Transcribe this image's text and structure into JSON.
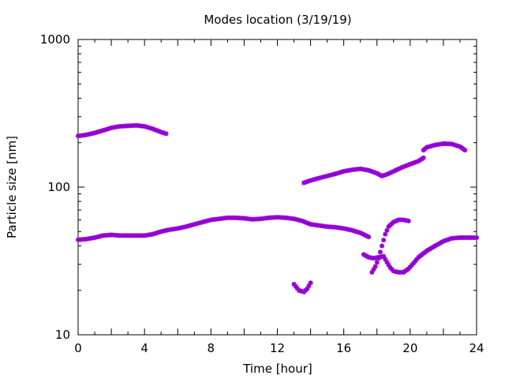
{
  "chart_data": {
    "type": "scatter",
    "title": "Modes location (3/19/19)",
    "xlabel": "Time [hour]",
    "ylabel": "Particle size [nm]",
    "xlim": [
      0,
      24
    ],
    "ylim": [
      10,
      1000
    ],
    "yscale": "log",
    "grid": false,
    "legend": "none",
    "marker_color": "#9400D3",
    "x_ticks": [
      0,
      4,
      8,
      12,
      16,
      20,
      24
    ],
    "x_tick_labels": [
      "0",
      "4",
      "8",
      "12",
      "16",
      "20",
      "24"
    ],
    "y_ticks": [
      10,
      100,
      1000
    ],
    "y_tick_labels": [
      "10",
      "100",
      "1000"
    ],
    "series": [
      {
        "values": [
          [
            0.0,
            222
          ],
          [
            0.5,
            226
          ],
          [
            1.0,
            233
          ],
          [
            1.5,
            242
          ],
          [
            2.0,
            252
          ],
          [
            2.5,
            258
          ],
          [
            3.0,
            260
          ],
          [
            3.5,
            262
          ],
          [
            4.0,
            258
          ],
          [
            4.5,
            248
          ],
          [
            5.0,
            236
          ],
          [
            5.3,
            230
          ]
        ]
      },
      {
        "values": [
          [
            0.0,
            44
          ],
          [
            0.5,
            44.5
          ],
          [
            1.0,
            45.5
          ],
          [
            1.5,
            47
          ],
          [
            2.0,
            47.5
          ],
          [
            2.5,
            47
          ],
          [
            3.0,
            47
          ],
          [
            3.5,
            47
          ],
          [
            4.0,
            47
          ],
          [
            4.5,
            48
          ],
          [
            5.0,
            50
          ],
          [
            5.5,
            51.5
          ],
          [
            6.0,
            52.5
          ],
          [
            6.5,
            54
          ],
          [
            7.0,
            56
          ],
          [
            7.5,
            58
          ],
          [
            8.0,
            60
          ],
          [
            8.5,
            61
          ],
          [
            9.0,
            62
          ],
          [
            9.5,
            62
          ],
          [
            10.0,
            61.5
          ],
          [
            10.5,
            60.5
          ],
          [
            11.0,
            61
          ],
          [
            11.5,
            62
          ],
          [
            12.0,
            62.5
          ],
          [
            12.5,
            62
          ],
          [
            13.0,
            61
          ],
          [
            13.5,
            59
          ],
          [
            14.0,
            56
          ],
          [
            14.5,
            55
          ],
          [
            15.0,
            54
          ],
          [
            15.5,
            53.5
          ],
          [
            16.0,
            52.5
          ],
          [
            16.5,
            51
          ],
          [
            17.0,
            49
          ],
          [
            17.5,
            46
          ]
        ]
      },
      {
        "values": [
          [
            13.0,
            22
          ],
          [
            13.3,
            20
          ],
          [
            13.6,
            19.5
          ],
          [
            13.8,
            20.5
          ],
          [
            14.0,
            22.5
          ]
        ]
      },
      {
        "values": [
          [
            13.6,
            107
          ],
          [
            14.0,
            111
          ],
          [
            14.5,
            115
          ],
          [
            15.0,
            119
          ],
          [
            15.5,
            123
          ],
          [
            16.0,
            128
          ],
          [
            16.5,
            131
          ],
          [
            17.0,
            133
          ],
          [
            17.5,
            130
          ],
          [
            18.0,
            124
          ],
          [
            18.3,
            119
          ],
          [
            18.6,
            122
          ],
          [
            19.0,
            128
          ],
          [
            19.5,
            136
          ],
          [
            20.0,
            143
          ],
          [
            20.5,
            150
          ],
          [
            20.8,
            158
          ]
        ]
      },
      {
        "values": [
          [
            20.8,
            178
          ],
          [
            21.0,
            186
          ],
          [
            21.5,
            193
          ],
          [
            22.0,
            197
          ],
          [
            22.5,
            196
          ],
          [
            23.0,
            188
          ],
          [
            23.3,
            178
          ]
        ]
      },
      {
        "values": [
          [
            17.2,
            35
          ],
          [
            17.5,
            33.5
          ],
          [
            17.8,
            33
          ],
          [
            18.1,
            33.5
          ],
          [
            18.4,
            34
          ],
          [
            18.6,
            31
          ],
          [
            18.8,
            28.5
          ],
          [
            19.0,
            27
          ],
          [
            19.3,
            26.5
          ],
          [
            19.6,
            26.5
          ],
          [
            19.9,
            28
          ],
          [
            20.2,
            30.5
          ],
          [
            20.5,
            33.5
          ],
          [
            21.0,
            37
          ],
          [
            21.5,
            40
          ],
          [
            22.0,
            43
          ],
          [
            22.5,
            45
          ],
          [
            23.0,
            45.5
          ],
          [
            23.5,
            45.5
          ],
          [
            24.0,
            45.5
          ]
        ]
      },
      {
        "values": [
          [
            17.7,
            26.5
          ],
          [
            17.9,
            29
          ],
          [
            18.1,
            33
          ],
          [
            18.3,
            40
          ],
          [
            18.5,
            48
          ],
          [
            18.7,
            54
          ],
          [
            19.0,
            58
          ],
          [
            19.3,
            60
          ],
          [
            19.6,
            60
          ],
          [
            19.9,
            59
          ]
        ]
      }
    ]
  }
}
